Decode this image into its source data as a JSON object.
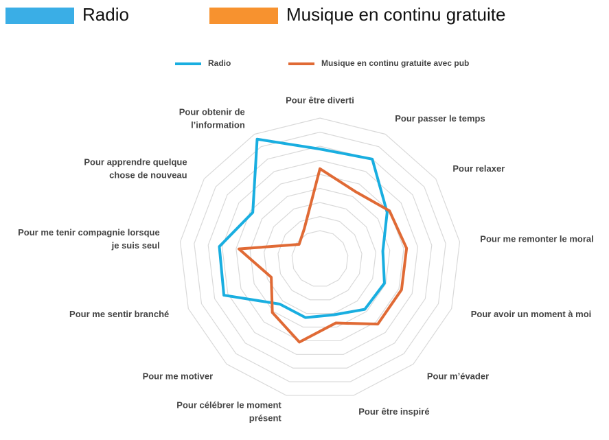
{
  "chart_data": {
    "type": "radar",
    "header_legend": [
      {
        "name": "Radio",
        "color": "#3aaee6"
      },
      {
        "name": "Musique en continu gratuite",
        "color": "#f7922f"
      }
    ],
    "categories": [
      [
        "Pour être diverti"
      ],
      [
        "Pour passer le temps"
      ],
      [
        "Pour relaxer"
      ],
      [
        "Pour me remonter le moral"
      ],
      [
        "Pour avoir un moment à moi"
      ],
      [
        "Pour m’évader"
      ],
      [
        "Pour être inspiré"
      ],
      [
        "Pour célébrer le moment",
        "présent"
      ],
      [
        "Pour me motiver"
      ],
      [
        "Pour me sentir branché"
      ],
      [
        "Pour me tenir compagnie lorsque",
        "je suis seul"
      ],
      [
        "Pour apprendre quelque",
        "chose de nouveau"
      ],
      [
        "Pour obtenir de",
        "l’information"
      ]
    ],
    "series": [
      {
        "name": "Radio",
        "color": "#19aee0",
        "values": [
          78,
          80,
          58,
          45,
          49,
          48,
          41,
          43,
          43,
          73,
          72,
          58,
          96
        ]
      },
      {
        "name": "Musique en continu gratuite avec pub",
        "color": "#e06a35",
        "values": [
          64,
          54,
          60,
          62,
          62,
          62,
          47,
          61,
          51,
          37,
          58,
          18,
          24
        ]
      }
    ],
    "rlim": [
      0,
      100
    ],
    "rticks": [
      20,
      30,
      40,
      50,
      60,
      70,
      80,
      90,
      100
    ],
    "grid": true
  }
}
